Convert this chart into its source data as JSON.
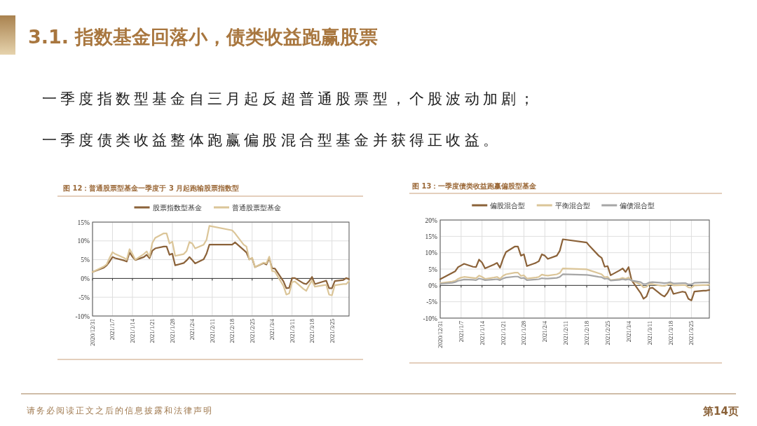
{
  "chart_data": [
    {
      "type": "line",
      "title": "图 12：普通股票型基金一季度于 3 月起跑输股票指数型",
      "annotations": [
        "3.1. 指数基金回落小，债类收益跑赢股票",
        "一季度指数型基金自三月起反超普通股票型，个股波动加剧；",
        "一季度债类收益整体跑赢偏股混合型基金并获得正收益。",
        "请务必阅读正文之后的信息披露和法律声明",
        "第14页"
      ],
      "x": [
        "2020-12-31",
        "2021-01-04",
        "2021-01-05",
        "2021-01-06",
        "2021-01-07",
        "2021-01-08",
        "2021-01-11",
        "2021-01-12",
        "2021-01-13",
        "2021-01-14",
        "2021-01-15",
        "2021-01-18",
        "2021-01-19",
        "2021-01-20",
        "2021-01-21",
        "2021-01-22",
        "2021-01-25",
        "2021-01-26",
        "2021-01-27",
        "2021-01-28",
        "2021-01-29",
        "2021-02-01",
        "2021-02-02",
        "2021-02-03",
        "2021-02-04",
        "2021-02-05",
        "2021-02-08",
        "2021-02-09",
        "2021-02-10",
        "2021-02-18",
        "2021-02-19",
        "2021-02-22",
        "2021-02-23",
        "2021-02-24",
        "2021-02-25",
        "2021-02-26",
        "2021-03-01",
        "2021-03-02",
        "2021-03-03",
        "2021-03-04",
        "2021-03-05",
        "2021-03-08",
        "2021-03-09",
        "2021-03-10",
        "2021-03-11",
        "2021-03-12",
        "2021-03-15",
        "2021-03-16",
        "2021-03-17",
        "2021-03-18",
        "2021-03-19",
        "2021-03-22",
        "2021-03-23",
        "2021-03-24",
        "2021-03-25",
        "2021-03-26",
        "2021-03-29",
        "2021-03-30",
        "2021-03-31"
      ],
      "xlim": [
        "2020-12-31",
        "2021-03-31"
      ],
      "xticks": [
        {
          "value": "2020-12-31",
          "label": "2020/12/31"
        },
        {
          "value": "2021-01-07",
          "label": "2021/1/7"
        },
        {
          "value": "2021-01-14",
          "label": "2021/1/14"
        },
        {
          "value": "2021-01-21",
          "label": "2021/1/21"
        },
        {
          "value": "2021-01-28",
          "label": "2021/1/28"
        },
        {
          "value": "2021-02-04",
          "label": "2021/2/4"
        },
        {
          "value": "2021-02-11",
          "label": "2021/2/11"
        },
        {
          "value": "2021-02-18",
          "label": "2021/2/18"
        },
        {
          "value": "2021-02-25",
          "label": "2021/2/25"
        },
        {
          "value": "2021-03-04",
          "label": "2021/3/4"
        },
        {
          "value": "2021-03-11",
          "label": "2021/3/11"
        },
        {
          "value": "2021-03-18",
          "label": "2021/3/18"
        },
        {
          "value": "2021-03-25",
          "label": "2021/3/25"
        }
      ],
      "ylim": [
        -10,
        15
      ],
      "yticks": [
        {
          "value": -10,
          "label": "-10%"
        },
        {
          "value": -5,
          "label": "-5%"
        },
        {
          "value": 0,
          "label": "0%"
        },
        {
          "value": 5,
          "label": "5%"
        },
        {
          "value": 10,
          "label": "10%"
        },
        {
          "value": 15,
          "label": "15%"
        }
      ],
      "grid": true,
      "legend": "top",
      "series": [
        {
          "name": "股票指数型基金",
          "color": "#8b6239",
          "values": [
            1.7,
            2.9,
            3.5,
            4.5,
            5.7,
            5.4,
            4.8,
            4.5,
            6.9,
            5.8,
            4.9,
            5.7,
            6.3,
            5.4,
            7.4,
            8.0,
            8.5,
            8.5,
            6.3,
            6.6,
            3.5,
            4.1,
            4.8,
            5.7,
            4.9,
            4.0,
            5.1,
            6.6,
            9.0,
            9.0,
            9.6,
            7.6,
            6.9,
            5.1,
            5.4,
            3.0,
            4.1,
            3.7,
            5.4,
            2.7,
            2.6,
            -0.8,
            -2.6,
            -2.5,
            0.1,
            0.1,
            -1.3,
            -1.5,
            -0.7,
            0.4,
            -1.5,
            -0.8,
            -0.6,
            -2.6,
            -2.6,
            -0.7,
            -0.4,
            0.1,
            -0.2
          ]
        },
        {
          "name": "普通股票型基金",
          "color": "#dbc598",
          "values": [
            1.7,
            3.2,
            3.8,
            5.5,
            7.0,
            6.5,
            5.5,
            5.0,
            7.8,
            6.5,
            5.0,
            6.5,
            7.2,
            5.8,
            9.5,
            10.8,
            12.0,
            12.0,
            9.3,
            9.8,
            6.0,
            6.5,
            7.3,
            9.7,
            9.3,
            8.0,
            9.0,
            10.3,
            14.0,
            12.8,
            12.0,
            9.0,
            8.5,
            5.0,
            5.5,
            3.0,
            4.2,
            4.0,
            5.8,
            2.0,
            1.8,
            -2.0,
            -4.3,
            -4.0,
            -1.0,
            -0.8,
            -2.8,
            -3.3,
            -1.8,
            -0.5,
            -2.2,
            -1.8,
            -1.7,
            -4.3,
            -4.5,
            -1.8,
            -1.5,
            -1.5,
            -0.7
          ]
        }
      ]
    },
    {
      "type": "line",
      "title": "图 13：一季度债类收益跑赢偏股型基金",
      "x": [
        "2020-12-31",
        "2021-01-04",
        "2021-01-05",
        "2021-01-06",
        "2021-01-07",
        "2021-01-08",
        "2021-01-11",
        "2021-01-12",
        "2021-01-13",
        "2021-01-14",
        "2021-01-15",
        "2021-01-18",
        "2021-01-19",
        "2021-01-20",
        "2021-01-21",
        "2021-01-22",
        "2021-01-25",
        "2021-01-26",
        "2021-01-27",
        "2021-01-28",
        "2021-01-29",
        "2021-02-01",
        "2021-02-02",
        "2021-02-03",
        "2021-02-04",
        "2021-02-05",
        "2021-02-08",
        "2021-02-09",
        "2021-02-10",
        "2021-02-18",
        "2021-02-19",
        "2021-02-22",
        "2021-02-23",
        "2021-02-24",
        "2021-02-25",
        "2021-02-26",
        "2021-03-01",
        "2021-03-02",
        "2021-03-03",
        "2021-03-04",
        "2021-03-05",
        "2021-03-08",
        "2021-03-09",
        "2021-03-10",
        "2021-03-11",
        "2021-03-12",
        "2021-03-15",
        "2021-03-16",
        "2021-03-17",
        "2021-03-18",
        "2021-03-19",
        "2021-03-22",
        "2021-03-23",
        "2021-03-24",
        "2021-03-25",
        "2021-03-26",
        "2021-03-29",
        "2021-03-30",
        "2021-03-31"
      ],
      "xlim": [
        "2020-12-31",
        "2021-03-31"
      ],
      "xticks": [
        {
          "value": "2020-12-31",
          "label": "2020/12/31"
        },
        {
          "value": "2021-01-07",
          "label": "2021/1/7"
        },
        {
          "value": "2021-01-14",
          "label": "2021/1/14"
        },
        {
          "value": "2021-01-21",
          "label": "2021/1/21"
        },
        {
          "value": "2021-01-28",
          "label": "2021/1/28"
        },
        {
          "value": "2021-02-04",
          "label": "2021/2/4"
        },
        {
          "value": "2021-02-11",
          "label": "2021/2/11"
        },
        {
          "value": "2021-02-18",
          "label": "2021/2/18"
        },
        {
          "value": "2021-02-25",
          "label": "2021/2/25"
        },
        {
          "value": "2021-03-04",
          "label": "2021/3/4"
        },
        {
          "value": "2021-03-11",
          "label": "2021/3/11"
        },
        {
          "value": "2021-03-18",
          "label": "2021/3/18"
        },
        {
          "value": "2021-03-25",
          "label": "2021/3/25"
        }
      ],
      "ylim": [
        -10,
        20
      ],
      "yticks": [
        {
          "value": -10,
          "label": "-10%"
        },
        {
          "value": -5,
          "label": "-5%"
        },
        {
          "value": 0,
          "label": "0%"
        },
        {
          "value": 5,
          "label": "5%"
        },
        {
          "value": 10,
          "label": "10%"
        },
        {
          "value": 15,
          "label": "15%"
        },
        {
          "value": 20,
          "label": "20%"
        }
      ],
      "grid": true,
      "legend": "top",
      "series": [
        {
          "name": "偏股混合型",
          "color": "#8b6239",
          "values": [
            1.9,
            3.8,
            4.3,
            5.6,
            6.1,
            6.6,
            5.7,
            5.6,
            7.9,
            7.0,
            5.2,
            6.4,
            6.9,
            5.4,
            8.1,
            10.2,
            11.9,
            11.9,
            9.1,
            9.5,
            5.9,
            6.9,
            7.4,
            9.5,
            9.1,
            8.1,
            9.1,
            10.6,
            14.1,
            13.1,
            12.0,
            9.1,
            8.4,
            5.7,
            5.9,
            3.1,
            4.6,
            5.2,
            4.1,
            5.6,
            1.6,
            -2.3,
            -4.1,
            -3.4,
            -0.9,
            -0.7,
            -2.9,
            -3.4,
            -2.3,
            -0.5,
            -2.6,
            -1.9,
            -2.1,
            -4.1,
            -4.6,
            -1.9,
            -1.6,
            -1.6,
            -1.4
          ]
        },
        {
          "name": "平衡混合型",
          "color": "#dbc598",
          "values": [
            0.7,
            1.2,
            1.4,
            2.0,
            2.4,
            2.6,
            2.3,
            2.2,
            3.0,
            2.6,
            2.0,
            2.4,
            2.6,
            2.0,
            2.9,
            3.4,
            3.9,
            3.9,
            2.9,
            3.1,
            2.1,
            2.4,
            2.6,
            3.3,
            3.1,
            3.0,
            3.4,
            3.8,
            5.2,
            4.9,
            4.6,
            3.7,
            3.4,
            2.5,
            2.6,
            1.6,
            2.0,
            2.3,
            2.0,
            2.4,
            1.5,
            0.3,
            -0.6,
            -0.4,
            0.4,
            0.4,
            -0.1,
            -0.2,
            0.2,
            0.5,
            0.0,
            0.1,
            0.1,
            -0.6,
            -0.7,
            0.0,
            0.1,
            0.1,
            0.2
          ]
        },
        {
          "name": "偏债混合型",
          "color": "#a6a6a6",
          "values": [
            0.5,
            0.8,
            1.0,
            1.4,
            1.6,
            1.8,
            1.7,
            1.6,
            2.1,
            1.9,
            1.6,
            1.8,
            1.9,
            1.6,
            2.1,
            2.4,
            2.7,
            2.7,
            2.2,
            2.3,
            1.6,
            1.8,
            1.9,
            2.2,
            2.1,
            2.1,
            2.3,
            2.6,
            3.4,
            3.2,
            3.1,
            2.6,
            2.5,
            2.0,
            2.1,
            1.5,
            1.7,
            1.9,
            1.7,
            1.9,
            1.5,
            1.0,
            0.4,
            0.5,
            0.9,
            1.0,
            0.8,
            0.7,
            0.8,
            1.0,
            0.6,
            0.7,
            0.7,
            0.3,
            0.3,
            0.8,
            0.9,
            0.9,
            0.9
          ]
        }
      ]
    }
  ]
}
